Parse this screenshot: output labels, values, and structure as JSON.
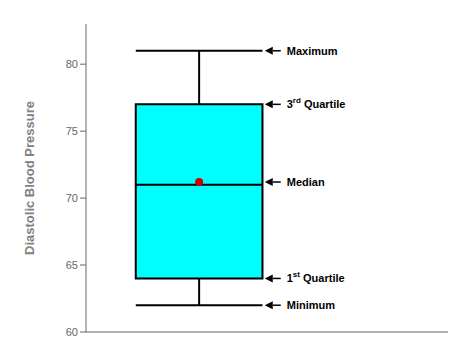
{
  "chart_data": {
    "type": "box",
    "y_label": "Diastolic Blood Pressure",
    "ylim": [
      60,
      83
    ],
    "yticks": [
      60,
      65,
      70,
      75,
      80
    ],
    "grid": false,
    "tick_labels": "y",
    "boxes": [
      {
        "q1": 64,
        "median": 71,
        "q3": 77,
        "whisker_min": 62,
        "whisker_max": 81,
        "color": "#00FFFF"
      }
    ],
    "points": [
      {
        "y": 71.2,
        "color": "#CC0000"
      }
    ],
    "annotations": [
      {
        "text": "Maximum",
        "y": 81
      },
      {
        "text": "3rd Quartile",
        "y": 77
      },
      {
        "text": "Median",
        "y": 71.2
      },
      {
        "text": "1st Quartile",
        "y": 64
      },
      {
        "text": "Minimum",
        "y": 62
      }
    ]
  }
}
